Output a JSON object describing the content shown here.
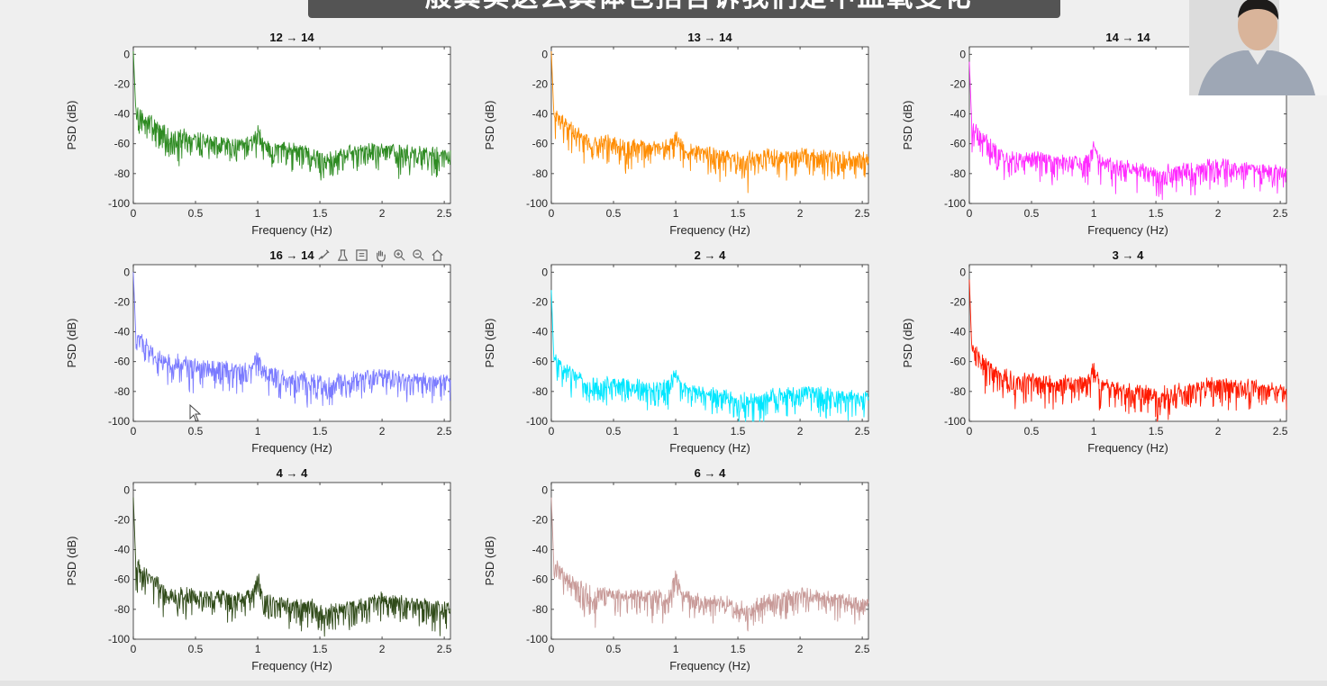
{
  "overlay": {
    "subtitle_text": "一般其实这么具体包括告诉我们是中血氧变化"
  },
  "toolbar": {
    "icons": [
      "brush-icon",
      "data-tip-icon",
      "legend-icon",
      "pan-hand-icon",
      "zoom-in-icon",
      "zoom-out-icon",
      "home-icon"
    ]
  },
  "colors": {
    "background": "#efefef",
    "axes_bg": "#ffffff"
  },
  "chart_data": [
    {
      "type": "line",
      "title": "12 → 14",
      "xlabel": "Frequency (Hz)",
      "ylabel": "PSD (dB)",
      "xlim": [
        0,
        2.55
      ],
      "ylim": [
        -100,
        5
      ],
      "xticks": [
        0,
        0.5,
        1,
        1.5,
        2,
        2.5
      ],
      "xtick_labels": [
        "0",
        "0.5",
        "1",
        "1.5",
        "2",
        "2.5"
      ],
      "yticks": [
        0,
        -20,
        -40,
        -60,
        -80,
        -100
      ],
      "ytick_labels": [
        "0",
        "-20",
        "-40",
        "-60",
        "-80",
        "-100"
      ],
      "color": "#2e8b22",
      "series": [
        {
          "x": [
            0,
            0.02,
            0.05,
            0.1,
            0.2,
            0.3,
            0.45,
            0.6,
            0.8,
            0.95,
            1.0,
            1.05,
            1.2,
            1.5,
            1.8,
            2.0,
            2.2,
            2.5,
            2.55
          ],
          "y": [
            2,
            -38,
            -36,
            -42,
            -47,
            -51,
            -54,
            -57,
            -59,
            -59,
            -50,
            -59,
            -62,
            -65,
            -64,
            -62,
            -64,
            -66,
            -66
          ]
        }
      ]
    },
    {
      "type": "line",
      "title": "13 → 14",
      "xlabel": "Frequency (Hz)",
      "ylabel": "PSD (dB)",
      "xlim": [
        0,
        2.55
      ],
      "ylim": [
        -100,
        5
      ],
      "xticks": [
        0,
        0.5,
        1,
        1.5,
        2,
        2.5
      ],
      "xtick_labels": [
        "0",
        "0.5",
        "1",
        "1.5",
        "2",
        "2.5"
      ],
      "yticks": [
        0,
        -20,
        -40,
        -60,
        -80,
        -100
      ],
      "ytick_labels": [
        "0",
        "-20",
        "-40",
        "-60",
        "-80",
        "-100"
      ],
      "color": "#ff8c00",
      "series": [
        {
          "x": [
            0,
            0.02,
            0.05,
            0.1,
            0.2,
            0.3,
            0.45,
            0.6,
            0.8,
            0.95,
            1.0,
            1.05,
            1.2,
            1.5,
            1.8,
            2.0,
            2.2,
            2.5,
            2.55
          ],
          "y": [
            2,
            -40,
            -40,
            -45,
            -50,
            -54,
            -57,
            -60,
            -61,
            -60,
            -53,
            -62,
            -65,
            -67,
            -67,
            -66,
            -67,
            -69,
            -69
          ]
        }
      ]
    },
    {
      "type": "line",
      "title": "14 → 14",
      "xlabel": "Frequency (Hz)",
      "ylabel": "PSD (dB)",
      "xlim": [
        0,
        2.55
      ],
      "ylim": [
        -100,
        5
      ],
      "xticks": [
        0,
        0.5,
        1,
        1.5,
        2,
        2.5
      ],
      "xtick_labels": [
        "0",
        "0.5",
        "1",
        "1.5",
        "2",
        "2.5"
      ],
      "yticks": [
        0,
        -20,
        -40,
        -60,
        -80,
        -100
      ],
      "ytick_labels": [
        "0",
        "-20",
        "-40",
        "-60",
        "-80",
        "-100"
      ],
      "color": "#ff2bff",
      "series": [
        {
          "x": [
            0,
            0.02,
            0.05,
            0.1,
            0.2,
            0.3,
            0.45,
            0.6,
            0.8,
            0.95,
            1.0,
            1.05,
            1.2,
            1.5,
            1.8,
            2.0,
            2.2,
            2.5,
            2.55
          ],
          "y": [
            -5,
            -48,
            -50,
            -55,
            -60,
            -64,
            -67,
            -69,
            -70,
            -70,
            -60,
            -71,
            -74,
            -77,
            -76,
            -73,
            -75,
            -78,
            -79
          ]
        }
      ]
    },
    {
      "type": "line",
      "title": "16 → 14",
      "xlabel": "Frequency (Hz)",
      "ylabel": "PSD (dB)",
      "xlim": [
        0,
        2.55
      ],
      "ylim": [
        -100,
        5
      ],
      "xticks": [
        0,
        0.5,
        1,
        1.5,
        2,
        2.5
      ],
      "xtick_labels": [
        "0",
        "0.5",
        "1",
        "1.5",
        "2",
        "2.5"
      ],
      "yticks": [
        0,
        -20,
        -40,
        -60,
        -80,
        -100
      ],
      "ytick_labels": [
        "0",
        "-20",
        "-40",
        "-60",
        "-80",
        "-100"
      ],
      "color": "#7b7bff",
      "series": [
        {
          "x": [
            0,
            0.02,
            0.05,
            0.1,
            0.2,
            0.3,
            0.45,
            0.6,
            0.8,
            0.95,
            1.0,
            1.05,
            1.2,
            1.5,
            1.8,
            2.0,
            2.2,
            2.5,
            2.55
          ],
          "y": [
            0,
            -42,
            -42,
            -48,
            -54,
            -57,
            -60,
            -62,
            -64,
            -64,
            -55,
            -65,
            -69,
            -71,
            -70,
            -68,
            -70,
            -72,
            -73
          ]
        }
      ]
    },
    {
      "type": "line",
      "title": "2 → 4",
      "xlabel": "Frequency (Hz)",
      "ylabel": "PSD (dB)",
      "xlim": [
        0,
        2.55
      ],
      "ylim": [
        -100,
        5
      ],
      "xticks": [
        0,
        0.5,
        1,
        1.5,
        2,
        2.5
      ],
      "xtick_labels": [
        "0",
        "0.5",
        "1",
        "1.5",
        "2",
        "2.5"
      ],
      "yticks": [
        0,
        -20,
        -40,
        -60,
        -80,
        -100
      ],
      "ytick_labels": [
        "0",
        "-20",
        "-40",
        "-60",
        "-80",
        "-100"
      ],
      "color": "#00e6ff",
      "series": [
        {
          "x": [
            0,
            0.02,
            0.05,
            0.1,
            0.2,
            0.3,
            0.45,
            0.6,
            0.8,
            0.95,
            1.0,
            1.05,
            1.2,
            1.5,
            1.8,
            2.0,
            2.2,
            2.5,
            2.55
          ],
          "y": [
            -12,
            -58,
            -58,
            -64,
            -68,
            -71,
            -73,
            -75,
            -76,
            -75,
            -65,
            -77,
            -80,
            -82,
            -81,
            -79,
            -81,
            -83,
            -84
          ]
        }
      ]
    },
    {
      "type": "line",
      "title": "3 → 4",
      "xlabel": "Frequency (Hz)",
      "ylabel": "PSD (dB)",
      "xlim": [
        0,
        2.55
      ],
      "ylim": [
        -100,
        5
      ],
      "xticks": [
        0,
        0.5,
        1,
        1.5,
        2,
        2.5
      ],
      "xtick_labels": [
        "0",
        "0.5",
        "1",
        "1.5",
        "2",
        "2.5"
      ],
      "yticks": [
        0,
        -20,
        -40,
        -60,
        -80,
        -100
      ],
      "ytick_labels": [
        "0",
        "-20",
        "-40",
        "-60",
        "-80",
        "-100"
      ],
      "color": "#ff1a00",
      "series": [
        {
          "x": [
            0,
            0.02,
            0.05,
            0.1,
            0.2,
            0.3,
            0.45,
            0.6,
            0.8,
            0.95,
            1.0,
            1.05,
            1.2,
            1.5,
            1.8,
            2.0,
            2.2,
            2.5,
            2.55
          ],
          "y": [
            -5,
            -52,
            -52,
            -58,
            -63,
            -67,
            -70,
            -72,
            -73,
            -72,
            -60,
            -74,
            -77,
            -79,
            -77,
            -73,
            -75,
            -78,
            -80
          ]
        }
      ]
    },
    {
      "type": "line",
      "title": "4 → 4",
      "xlabel": "Frequency (Hz)",
      "ylabel": "PSD (dB)",
      "xlim": [
        0,
        2.55
      ],
      "ylim": [
        -100,
        5
      ],
      "xticks": [
        0,
        0.5,
        1,
        1.5,
        2,
        2.5
      ],
      "xtick_labels": [
        "0",
        "0.5",
        "1",
        "1.5",
        "2",
        "2.5"
      ],
      "yticks": [
        0,
        -20,
        -40,
        -60,
        -80,
        -100
      ],
      "ytick_labels": [
        "0",
        "-20",
        "-40",
        "-60",
        "-80",
        "-100"
      ],
      "color": "#2f4a18",
      "series": [
        {
          "x": [
            0,
            0.02,
            0.05,
            0.1,
            0.2,
            0.3,
            0.45,
            0.6,
            0.8,
            0.95,
            1.0,
            1.05,
            1.2,
            1.5,
            1.8,
            2.0,
            2.2,
            2.5,
            2.55
          ],
          "y": [
            -5,
            -50,
            -50,
            -56,
            -61,
            -65,
            -68,
            -70,
            -71,
            -70,
            -57,
            -72,
            -75,
            -77,
            -76,
            -72,
            -75,
            -78,
            -79
          ]
        }
      ]
    },
    {
      "type": "line",
      "title": "6 → 4",
      "xlabel": "Frequency (Hz)",
      "ylabel": "PSD (dB)",
      "xlim": [
        0,
        2.55
      ],
      "ylim": [
        -100,
        5
      ],
      "xticks": [
        0,
        0.5,
        1,
        1.5,
        2,
        2.5
      ],
      "xtick_labels": [
        "0",
        "0.5",
        "1",
        "1.5",
        "2",
        "2.5"
      ],
      "yticks": [
        0,
        -20,
        -40,
        -60,
        -80,
        -100
      ],
      "ytick_labels": [
        "0",
        "-20",
        "-40",
        "-60",
        "-80",
        "-100"
      ],
      "color": "#c89a98",
      "series": [
        {
          "x": [
            0,
            0.02,
            0.05,
            0.1,
            0.2,
            0.3,
            0.45,
            0.6,
            0.8,
            0.95,
            1.0,
            1.05,
            1.2,
            1.5,
            1.8,
            2.0,
            2.2,
            2.5,
            2.55
          ],
          "y": [
            -5,
            -50,
            -50,
            -56,
            -62,
            -66,
            -68,
            -70,
            -71,
            -70,
            -53,
            -70,
            -73,
            -75,
            -73,
            -68,
            -71,
            -75,
            -76
          ]
        }
      ]
    }
  ]
}
